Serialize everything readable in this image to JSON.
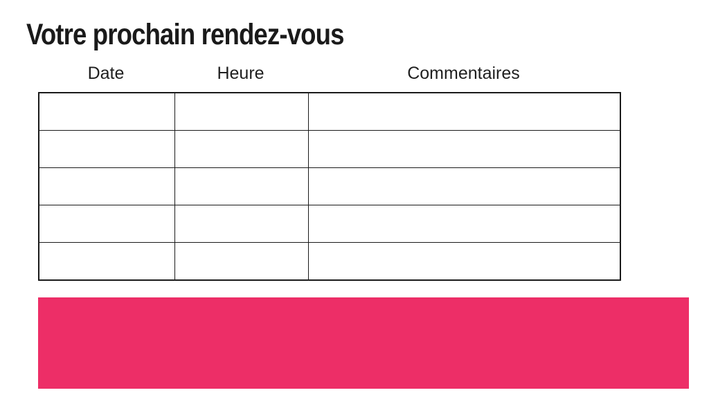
{
  "page": {
    "title": "Votre prochain rendez-vous",
    "background": "#ffffff"
  },
  "table": {
    "columns": [
      {
        "label": "Date"
      },
      {
        "label": "Heure"
      },
      {
        "label": "Commentaires"
      }
    ],
    "rows": [
      [
        "",
        "",
        ""
      ],
      [
        "",
        "",
        ""
      ],
      [
        "",
        "",
        ""
      ],
      [
        "",
        "",
        ""
      ],
      [
        "",
        "",
        ""
      ]
    ]
  },
  "banner": {
    "color": "#ED2E67"
  }
}
